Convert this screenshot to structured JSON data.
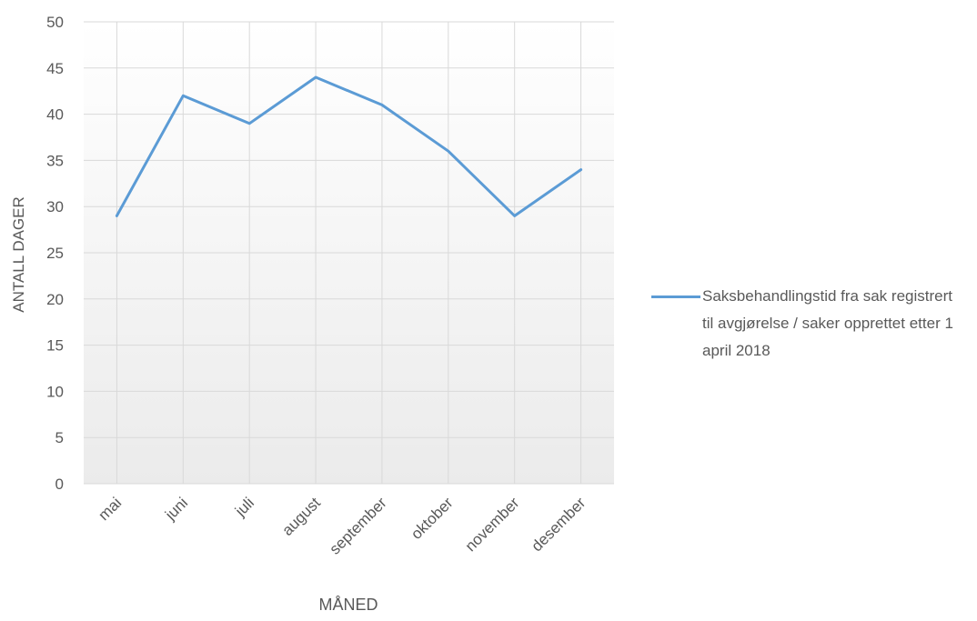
{
  "chart_data": {
    "type": "line",
    "title": "",
    "xlabel": "MÅNED",
    "ylabel": "ANTALL DAGER",
    "categories": [
      "mai",
      "juni",
      "juli",
      "august",
      "september",
      "oktober",
      "november",
      "desember"
    ],
    "y_ticks": [
      "0",
      "5",
      "10",
      "15",
      "20",
      "25",
      "30",
      "35",
      "40",
      "45",
      "50"
    ],
    "ylim": [
      0,
      50
    ],
    "grid": true,
    "legend_position": "right",
    "series": [
      {
        "name": "Saksbehandlingstid fra sak registrert til avgjørelse / saker opprettet etter 1 april 2018",
        "values": [
          29,
          42,
          39,
          44,
          41,
          36,
          29,
          34
        ],
        "color": "#5b9bd5"
      }
    ]
  }
}
